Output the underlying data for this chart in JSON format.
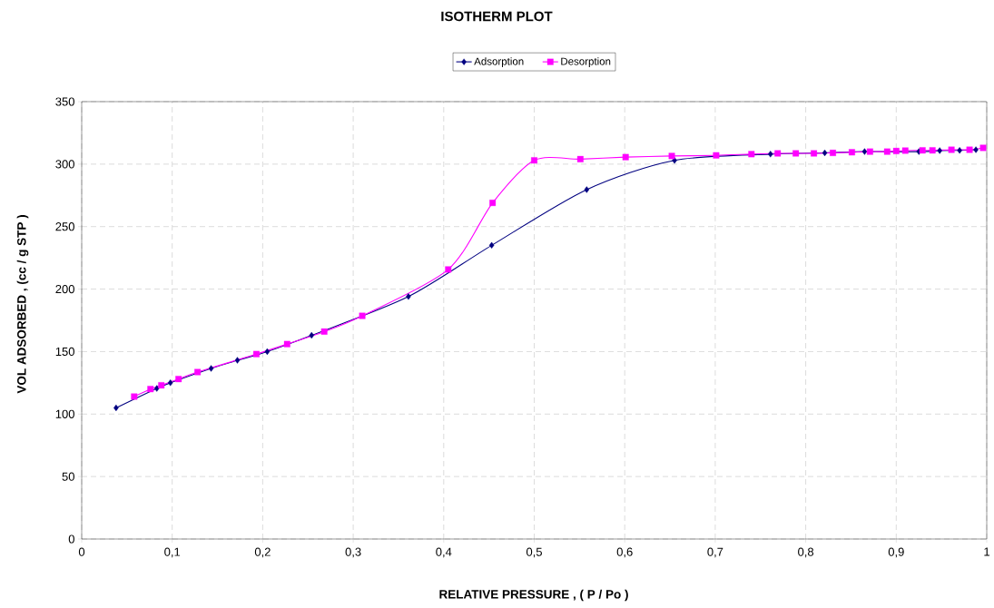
{
  "chart_data": {
    "type": "line",
    "title": "ISOTHERM PLOT",
    "xlabel": "RELATIVE PRESSURE , ( P / Po )",
    "ylabel": "VOL ADSORBED , (cc / g STP )",
    "xlim": [
      0,
      1
    ],
    "ylim": [
      0,
      350
    ],
    "xticks": [
      0,
      {
        "value": 0.1,
        "label": "0,1"
      },
      {
        "value": 0.2,
        "label": "0,2"
      },
      {
        "value": 0.3,
        "label": "0,3"
      },
      {
        "value": 0.4,
        "label": "0,4"
      },
      {
        "value": 0.5,
        "label": "0,5"
      },
      {
        "value": 0.6,
        "label": "0,6"
      },
      {
        "value": 0.7,
        "label": "0,7"
      },
      {
        "value": 0.8,
        "label": "0,8"
      },
      {
        "value": 0.9,
        "label": "0,9"
      },
      1
    ],
    "yticks": [
      0,
      50,
      100,
      150,
      200,
      250,
      300,
      350
    ],
    "grid": true,
    "legend": "top",
    "series": [
      {
        "name": "Adsorption",
        "color": "#000080",
        "marker": "diamond",
        "x": [
          0.038,
          0.057,
          0.083,
          0.098,
          0.143,
          0.172,
          0.205,
          0.254,
          0.311,
          0.361,
          0.405,
          0.453,
          0.558,
          0.655,
          0.704,
          0.761,
          0.821,
          0.865,
          0.925,
          0.948,
          0.97,
          0.988
        ],
        "values": [
          105,
          null,
          120.5,
          125,
          136.5,
          143,
          150,
          163,
          null,
          194,
          null,
          235,
          279.6,
          303,
          null,
          308,
          309,
          310,
          310,
          310.8,
          311,
          311.5
        ]
      },
      {
        "name": "Desorption",
        "color": "#ff00ff",
        "marker": "square",
        "x": [
          0.058,
          0.076,
          0.088,
          0.107,
          0.128,
          0.193,
          0.227,
          0.268,
          0.31,
          0.405,
          0.454,
          0.5,
          0.551,
          0.601,
          0.652,
          0.701,
          0.74,
          0.769,
          0.789,
          0.809,
          0.83,
          0.851,
          0.871,
          0.89,
          0.9,
          0.91,
          0.929,
          0.94,
          0.961,
          0.981,
          0.996
        ],
        "values": [
          114,
          120,
          123,
          128,
          133.6,
          148,
          156,
          166,
          178.6,
          215.7,
          269,
          303,
          304,
          305.6,
          306.5,
          307,
          308,
          308.6,
          308.6,
          308.6,
          309,
          309.5,
          310,
          310,
          310.5,
          310.8,
          311,
          311,
          311.5,
          311.5,
          313
        ]
      }
    ]
  }
}
